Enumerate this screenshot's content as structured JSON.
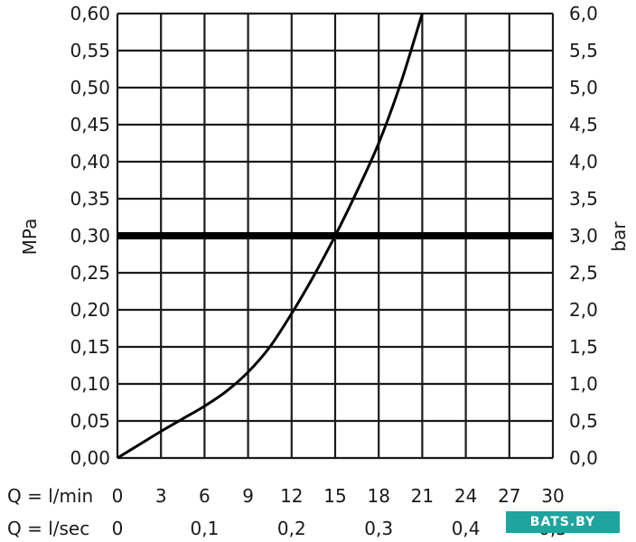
{
  "chart_data": {
    "type": "line",
    "left_axis": {
      "label": "MPa",
      "range": [
        0,
        0.6
      ],
      "ticks": [
        "0,00",
        "0,05",
        "0,10",
        "0,15",
        "0,20",
        "0,25",
        "0,30",
        "0,35",
        "0,40",
        "0,45",
        "0,50",
        "0,55",
        "0,60"
      ]
    },
    "right_axis": {
      "label": "bar",
      "range": [
        0,
        6
      ],
      "ticks": [
        "0,0",
        "0,5",
        "1,0",
        "1,5",
        "2,0",
        "2,5",
        "3,0",
        "3,5",
        "4,0",
        "4,5",
        "5,0",
        "5,5",
        "6,0"
      ]
    },
    "x_axis_lmin": {
      "label": "Q = l/min",
      "range": [
        0,
        30
      ],
      "ticks": [
        "0",
        "3",
        "6",
        "9",
        "12",
        "15",
        "18",
        "21",
        "24",
        "27",
        "30"
      ]
    },
    "x_axis_lsec": {
      "label": "Q = l/sec",
      "ticks": [
        {
          "value": 0,
          "text": "0"
        },
        {
          "value": 0.1,
          "text": "0,1"
        },
        {
          "value": 0.2,
          "text": "0,2"
        },
        {
          "value": 0.3,
          "text": "0,3"
        },
        {
          "value": 0.4,
          "text": "0,4"
        },
        {
          "value": 0.5,
          "text": "0,5"
        }
      ]
    },
    "grid": true,
    "series": [
      {
        "x": [
          0,
          1.5,
          3,
          4.5,
          6,
          7.5,
          9,
          10.5,
          12,
          13.5,
          15,
          16.5,
          18,
          19.5,
          21
        ],
        "y": [
          0,
          0.018,
          0.036,
          0.053,
          0.07,
          0.09,
          0.116,
          0.15,
          0.195,
          0.245,
          0.3,
          0.36,
          0.425,
          0.505,
          0.6
        ]
      }
    ],
    "reference_line": {
      "y": 0.3
    },
    "marker_line": {
      "x": 15,
      "y_max": 0.3,
      "style": "dashed"
    }
  },
  "watermark": {
    "text": "BATS.BY",
    "color": "#1fa4a0"
  }
}
